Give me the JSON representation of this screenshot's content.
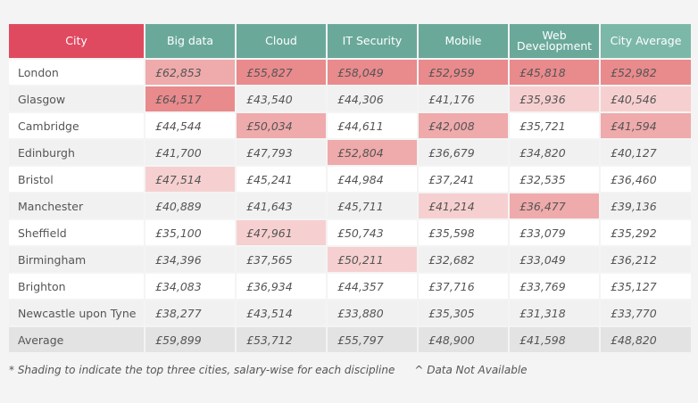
{
  "headers": [
    "City",
    "Big data",
    "Cloud",
    "IT Security",
    "Mobile",
    "Web Development",
    "City Average"
  ],
  "rows": [
    {
      "city": "London",
      "values": [
        "£62,853",
        "£55,827",
        "£58,049",
        "£52,959",
        "£45,818",
        "£52,982"
      ],
      "shade": [
        2,
        1,
        1,
        1,
        1,
        1
      ]
    },
    {
      "city": "Glasgow",
      "values": [
        "£64,517",
        "£43,540",
        "£44,306",
        "£41,176",
        "£35,936",
        "£40,546"
      ],
      "shade": [
        1,
        0,
        0,
        0,
        3,
        3
      ]
    },
    {
      "city": "Cambridge",
      "values": [
        "£44,544",
        "£50,034",
        "£44,611",
        "£42,008",
        "£35,721",
        "£41,594"
      ],
      "shade": [
        0,
        2,
        0,
        2,
        0,
        2
      ]
    },
    {
      "city": "Edinburgh",
      "values": [
        "£41,700",
        "£47,793",
        "£52,804",
        "£36,679",
        "£34,820",
        "£40,127"
      ],
      "shade": [
        0,
        0,
        2,
        0,
        0,
        0
      ]
    },
    {
      "city": "Bristol",
      "values": [
        "£47,514",
        "£45,241",
        "£44,984",
        "£37,241",
        "£32,535",
        "£36,460"
      ],
      "shade": [
        3,
        0,
        0,
        0,
        0,
        0
      ]
    },
    {
      "city": "Manchester",
      "values": [
        "£40,889",
        "£41,643",
        "£45,711",
        "£41,214",
        "£36,477",
        "£39,136"
      ],
      "shade": [
        0,
        0,
        0,
        3,
        2,
        0
      ]
    },
    {
      "city": "Sheffield",
      "values": [
        "£35,100",
        "£47,961",
        "£50,743",
        "£35,598",
        "£33,079",
        "£35,292"
      ],
      "shade": [
        0,
        3,
        0,
        0,
        0,
        0
      ]
    },
    {
      "city": "Birmingham",
      "values": [
        "£34,396",
        "£37,565",
        "£50,211",
        "£32,682",
        "£33,049",
        "£36,212"
      ],
      "shade": [
        0,
        0,
        3,
        0,
        0,
        0
      ]
    },
    {
      "city": "Brighton",
      "values": [
        "£34,083",
        "£36,934",
        "£44,357",
        "£37,716",
        "£33,769",
        "£35,127"
      ],
      "shade": [
        0,
        0,
        0,
        0,
        0,
        0
      ]
    },
    {
      "city": "Newcastle upon Tyne",
      "values": [
        "£38,277",
        "£43,514",
        "£33,880",
        "£35,305",
        "£31,318",
        "£33,770"
      ],
      "shade": [
        0,
        0,
        0,
        0,
        0,
        0
      ]
    }
  ],
  "average": {
    "city": "Average",
    "values": [
      "£59,899",
      "£53,712",
      "£55,797",
      "£48,900",
      "£41,598",
      "£48,820"
    ]
  },
  "footnotes": [
    "* Shading to indicate the top three cities, salary-wise for each discipline",
    "^ Data Not Available"
  ]
}
